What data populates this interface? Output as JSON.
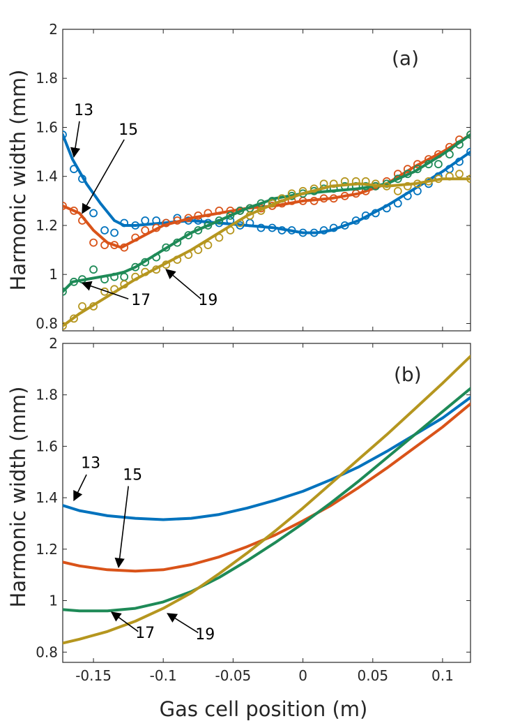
{
  "figure": {
    "xlabel": "Gas cell position (m)",
    "x_ticks": [
      -0.15,
      -0.1,
      -0.05,
      0,
      0.05,
      0.1
    ],
    "x_tick_labels": [
      "-0.15",
      "-0.1",
      "-0.05",
      "0",
      "0.05",
      "0.1"
    ],
    "xlim": [
      -0.172,
      0.12
    ]
  },
  "chart_data": [
    {
      "type": "line",
      "panel_label": "(a)",
      "ylabel": "Harmonic width (mm)",
      "ylim": [
        0.77,
        2.0
      ],
      "y_ticks": [
        0.8,
        1,
        1.2,
        1.4,
        1.6,
        1.8,
        2
      ],
      "y_tick_labels": [
        "0.8",
        "1",
        "1.2",
        "1.4",
        "1.6",
        "1.8",
        "2"
      ],
      "series": [
        {
          "name": "13",
          "color": "#0072BD",
          "fit_x": [
            -0.172,
            -0.165,
            -0.155,
            -0.145,
            -0.135,
            -0.128,
            -0.12,
            -0.1,
            -0.08,
            -0.06,
            -0.04,
            -0.02,
            0,
            0.01,
            0.02,
            0.04,
            0.06,
            0.08,
            0.1,
            0.12
          ],
          "fit_y": [
            1.57,
            1.47,
            1.37,
            1.29,
            1.22,
            1.2,
            1.2,
            1.21,
            1.22,
            1.21,
            1.2,
            1.19,
            1.17,
            1.17,
            1.18,
            1.22,
            1.28,
            1.35,
            1.42,
            1.5
          ],
          "points_x": [
            -0.172,
            -0.164,
            -0.158,
            -0.15,
            -0.142,
            -0.135,
            -0.128,
            -0.12,
            -0.113,
            -0.105,
            -0.098,
            -0.09,
            -0.082,
            -0.075,
            -0.068,
            -0.06,
            -0.052,
            -0.045,
            -0.038,
            -0.03,
            -0.022,
            -0.015,
            -0.008,
            0,
            0.008,
            0.015,
            0.022,
            0.03,
            0.038,
            0.045,
            0.052,
            0.06,
            0.068,
            0.075,
            0.082,
            0.09,
            0.097,
            0.105,
            0.112,
            0.12
          ],
          "points_y": [
            1.57,
            1.43,
            1.39,
            1.25,
            1.18,
            1.17,
            1.21,
            1.2,
            1.22,
            1.22,
            1.21,
            1.23,
            1.22,
            1.22,
            1.21,
            1.21,
            1.22,
            1.2,
            1.21,
            1.19,
            1.19,
            1.18,
            1.18,
            1.17,
            1.17,
            1.18,
            1.19,
            1.2,
            1.22,
            1.24,
            1.25,
            1.27,
            1.29,
            1.32,
            1.34,
            1.37,
            1.4,
            1.43,
            1.46,
            1.5
          ]
        },
        {
          "name": "15",
          "color": "#D95319",
          "fit_x": [
            -0.172,
            -0.16,
            -0.15,
            -0.14,
            -0.13,
            -0.12,
            -0.1,
            -0.08,
            -0.06,
            -0.04,
            -0.02,
            0,
            0.02,
            0.04,
            0.06,
            0.08,
            0.1,
            0.12
          ],
          "fit_y": [
            1.28,
            1.25,
            1.18,
            1.13,
            1.11,
            1.14,
            1.2,
            1.23,
            1.25,
            1.27,
            1.28,
            1.3,
            1.31,
            1.33,
            1.37,
            1.44,
            1.5,
            1.57
          ],
          "points_x": [
            -0.172,
            -0.164,
            -0.158,
            -0.15,
            -0.142,
            -0.135,
            -0.128,
            -0.12,
            -0.113,
            -0.105,
            -0.098,
            -0.09,
            -0.082,
            -0.075,
            -0.068,
            -0.06,
            -0.052,
            -0.045,
            -0.038,
            -0.03,
            -0.022,
            -0.015,
            -0.008,
            0,
            0.008,
            0.015,
            0.022,
            0.03,
            0.038,
            0.045,
            0.052,
            0.06,
            0.068,
            0.075,
            0.082,
            0.09,
            0.097,
            0.105,
            0.112,
            0.12
          ],
          "points_y": [
            1.28,
            1.26,
            1.22,
            1.13,
            1.12,
            1.12,
            1.11,
            1.15,
            1.18,
            1.19,
            1.21,
            1.22,
            1.23,
            1.24,
            1.25,
            1.26,
            1.26,
            1.26,
            1.27,
            1.27,
            1.28,
            1.29,
            1.3,
            1.3,
            1.3,
            1.31,
            1.31,
            1.32,
            1.33,
            1.34,
            1.36,
            1.38,
            1.41,
            1.43,
            1.45,
            1.47,
            1.49,
            1.52,
            1.55,
            1.57
          ]
        },
        {
          "name": "17",
          "color": "#1E8A57",
          "fit_x": [
            -0.172,
            -0.165,
            -0.155,
            -0.145,
            -0.135,
            -0.128,
            -0.12,
            -0.1,
            -0.08,
            -0.06,
            -0.04,
            -0.02,
            0,
            0.02,
            0.04,
            0.06,
            0.08,
            0.1,
            0.12
          ],
          "fit_y": [
            0.93,
            0.97,
            0.98,
            0.99,
            1.0,
            1.01,
            1.03,
            1.1,
            1.17,
            1.22,
            1.27,
            1.31,
            1.33,
            1.34,
            1.35,
            1.37,
            1.42,
            1.49,
            1.57
          ],
          "points_x": [
            -0.172,
            -0.164,
            -0.158,
            -0.15,
            -0.142,
            -0.135,
            -0.128,
            -0.12,
            -0.113,
            -0.105,
            -0.098,
            -0.09,
            -0.082,
            -0.075,
            -0.068,
            -0.06,
            -0.052,
            -0.045,
            -0.038,
            -0.03,
            -0.022,
            -0.015,
            -0.008,
            0,
            0.008,
            0.015,
            0.022,
            0.03,
            0.038,
            0.045,
            0.052,
            0.06,
            0.068,
            0.075,
            0.082,
            0.09,
            0.097,
            0.105,
            0.112,
            0.12
          ],
          "points_y": [
            0.93,
            0.97,
            0.98,
            1.02,
            0.98,
            0.99,
            0.99,
            1.03,
            1.05,
            1.07,
            1.11,
            1.13,
            1.16,
            1.18,
            1.2,
            1.22,
            1.24,
            1.26,
            1.27,
            1.29,
            1.3,
            1.31,
            1.32,
            1.33,
            1.34,
            1.35,
            1.35,
            1.36,
            1.36,
            1.36,
            1.36,
            1.37,
            1.39,
            1.41,
            1.43,
            1.45,
            1.45,
            1.49,
            1.53,
            1.57
          ]
        },
        {
          "name": "19",
          "color": "#B5961F",
          "fit_x": [
            -0.172,
            -0.16,
            -0.14,
            -0.12,
            -0.1,
            -0.08,
            -0.06,
            -0.04,
            -0.02,
            0,
            0.02,
            0.04,
            0.06,
            0.08,
            0.1,
            0.12
          ],
          "fit_y": [
            0.79,
            0.84,
            0.91,
            0.98,
            1.04,
            1.1,
            1.17,
            1.24,
            1.29,
            1.33,
            1.36,
            1.37,
            1.36,
            1.37,
            1.39,
            1.39
          ],
          "points_x": [
            -0.172,
            -0.164,
            -0.158,
            -0.15,
            -0.142,
            -0.135,
            -0.128,
            -0.12,
            -0.113,
            -0.105,
            -0.098,
            -0.09,
            -0.082,
            -0.075,
            -0.068,
            -0.06,
            -0.052,
            -0.045,
            -0.038,
            -0.03,
            -0.022,
            -0.015,
            -0.008,
            0,
            0.008,
            0.015,
            0.022,
            0.03,
            0.038,
            0.045,
            0.052,
            0.06,
            0.068,
            0.075,
            0.082,
            0.09,
            0.097,
            0.105,
            0.112,
            0.12
          ],
          "points_y": [
            0.79,
            0.82,
            0.87,
            0.87,
            0.93,
            0.94,
            0.96,
            0.99,
            1.01,
            1.02,
            1.04,
            1.06,
            1.08,
            1.1,
            1.12,
            1.15,
            1.18,
            1.21,
            1.24,
            1.26,
            1.29,
            1.31,
            1.33,
            1.34,
            1.35,
            1.37,
            1.37,
            1.38,
            1.38,
            1.38,
            1.37,
            1.36,
            1.34,
            1.36,
            1.37,
            1.38,
            1.39,
            1.4,
            1.41,
            1.39
          ]
        }
      ],
      "annotations": [
        {
          "text": "13",
          "label_x": -0.157,
          "label_y": 1.65,
          "arrow_from_x": -0.16,
          "arrow_from_y": 1.625,
          "arrow_to_x": -0.164,
          "arrow_to_y": 1.48
        },
        {
          "text": "15",
          "label_x": -0.125,
          "label_y": 1.57,
          "arrow_from_x": -0.128,
          "arrow_from_y": 1.55,
          "arrow_to_x": -0.158,
          "arrow_to_y": 1.25
        },
        {
          "text": "17",
          "label_x": -0.116,
          "label_y": 0.875,
          "arrow_from_x": -0.125,
          "arrow_from_y": 0.9,
          "arrow_to_x": -0.158,
          "arrow_to_y": 0.965
        },
        {
          "text": "19",
          "label_x": -0.068,
          "label_y": 0.875,
          "arrow_from_x": -0.073,
          "arrow_from_y": 0.9,
          "arrow_to_x": -0.098,
          "arrow_to_y": 1.02
        }
      ]
    },
    {
      "type": "line",
      "panel_label": "(b)",
      "ylabel": "Harmonic width (mm)",
      "ylim": [
        0.76,
        2.0
      ],
      "y_ticks": [
        0.8,
        1,
        1.2,
        1.4,
        1.6,
        1.8,
        2
      ],
      "y_tick_labels": [
        "0.8",
        "1",
        "1.2",
        "1.4",
        "1.6",
        "1.8",
        "2"
      ],
      "series": [
        {
          "name": "13",
          "color": "#0072BD",
          "x": [
            -0.172,
            -0.16,
            -0.14,
            -0.12,
            -0.1,
            -0.08,
            -0.06,
            -0.04,
            -0.02,
            0,
            0.02,
            0.04,
            0.06,
            0.08,
            0.1,
            0.12
          ],
          "y": [
            1.37,
            1.35,
            1.33,
            1.32,
            1.315,
            1.32,
            1.335,
            1.36,
            1.39,
            1.425,
            1.47,
            1.52,
            1.58,
            1.645,
            1.71,
            1.79
          ]
        },
        {
          "name": "15",
          "color": "#D95319",
          "x": [
            -0.172,
            -0.16,
            -0.14,
            -0.12,
            -0.1,
            -0.08,
            -0.06,
            -0.04,
            -0.02,
            0,
            0.02,
            0.04,
            0.06,
            0.08,
            0.1,
            0.12
          ],
          "y": [
            1.15,
            1.135,
            1.12,
            1.115,
            1.12,
            1.14,
            1.17,
            1.21,
            1.255,
            1.31,
            1.37,
            1.44,
            1.515,
            1.595,
            1.675,
            1.765
          ]
        },
        {
          "name": "17",
          "color": "#1E8A57",
          "x": [
            -0.172,
            -0.16,
            -0.14,
            -0.12,
            -0.1,
            -0.08,
            -0.06,
            -0.04,
            -0.02,
            0,
            0.02,
            0.04,
            0.06,
            0.08,
            0.1,
            0.12
          ],
          "y": [
            0.965,
            0.96,
            0.96,
            0.97,
            0.995,
            1.035,
            1.09,
            1.155,
            1.225,
            1.3,
            1.38,
            1.465,
            1.555,
            1.645,
            1.735,
            1.825
          ]
        },
        {
          "name": "19",
          "color": "#B5961F",
          "x": [
            -0.172,
            -0.16,
            -0.14,
            -0.12,
            -0.1,
            -0.08,
            -0.06,
            -0.04,
            -0.02,
            0,
            0.02,
            0.04,
            0.06,
            0.08,
            0.1,
            0.12
          ],
          "y": [
            0.835,
            0.85,
            0.88,
            0.92,
            0.97,
            1.03,
            1.105,
            1.185,
            1.27,
            1.36,
            1.455,
            1.55,
            1.645,
            1.745,
            1.845,
            1.95
          ]
        }
      ],
      "annotations": [
        {
          "text": "13",
          "label_x": -0.152,
          "label_y": 1.515,
          "arrow_from_x": -0.155,
          "arrow_from_y": 1.49,
          "arrow_to_x": -0.164,
          "arrow_to_y": 1.39
        },
        {
          "text": "15",
          "label_x": -0.122,
          "label_y": 1.47,
          "arrow_from_x": -0.125,
          "arrow_from_y": 1.445,
          "arrow_to_x": -0.132,
          "arrow_to_y": 1.13
        },
        {
          "text": "17",
          "label_x": -0.113,
          "label_y": 0.855,
          "arrow_from_x": -0.118,
          "arrow_from_y": 0.88,
          "arrow_to_x": -0.137,
          "arrow_to_y": 0.955
        },
        {
          "text": "19",
          "label_x": -0.07,
          "label_y": 0.85,
          "arrow_from_x": -0.075,
          "arrow_from_y": 0.875,
          "arrow_to_x": -0.097,
          "arrow_to_y": 0.95
        }
      ]
    }
  ]
}
